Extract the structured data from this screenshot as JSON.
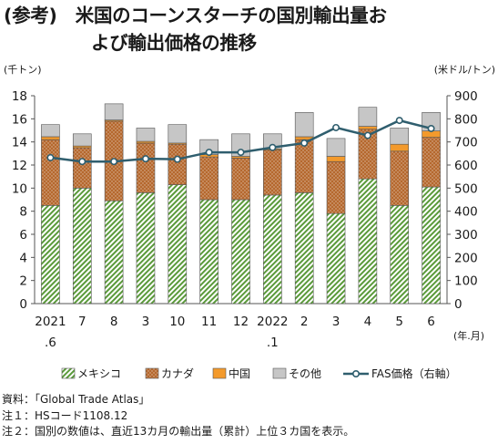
{
  "title": {
    "line1": "(参考)　米国のコーンスターチの国別輸出量お",
    "line2": "よび輸出価格の推移"
  },
  "notes": [
    "資料：「Global Trade Atlas」",
    "注１：HSコード1108.12",
    "注２：国別の数値は、直近13カ月の輸出量（累計）上位３カ国を表示。"
  ],
  "colors": {
    "mexico_fg": "#5a9a3a",
    "canada_fill": "#b5682e",
    "china_fill": "#f39a2c",
    "other_fill": "#c6c6c6",
    "fas_line": "#2f5e6e",
    "fas_marker_fill": "#ffffff"
  },
  "chart_data": {
    "type": "bar",
    "stacked": true,
    "title": "",
    "ylabel": "(千トン)",
    "y2label": "(米ドル/トン)",
    "xlabel": "(年.月)",
    "ylim": [
      0,
      18
    ],
    "yticks": [
      0,
      2,
      4,
      6,
      8,
      10,
      12,
      14,
      16,
      18
    ],
    "y2lim": [
      0,
      900
    ],
    "y2ticks": [
      0,
      100,
      200,
      300,
      400,
      500,
      600,
      700,
      800,
      900
    ],
    "grid": false,
    "legend_position": "bottom",
    "categories": [
      "2021.6",
      "7",
      "8",
      "3",
      "10",
      "11",
      "12",
      "2022.1",
      "2",
      "3",
      "4",
      "5",
      "6"
    ],
    "category_labels": [
      {
        "main": "2021",
        "sub": ".6"
      },
      {
        "main": "7",
        "sub": ""
      },
      {
        "main": "8",
        "sub": ""
      },
      {
        "main": "3",
        "sub": ""
      },
      {
        "main": "10",
        "sub": ""
      },
      {
        "main": "11",
        "sub": ""
      },
      {
        "main": "12",
        "sub": ""
      },
      {
        "main": "2022",
        "sub": ".1"
      },
      {
        "main": "2",
        "sub": ""
      },
      {
        "main": "3",
        "sub": ""
      },
      {
        "main": "4",
        "sub": ""
      },
      {
        "main": "5",
        "sub": ""
      },
      {
        "main": "6",
        "sub": ""
      }
    ],
    "series": [
      {
        "name": "メキシコ",
        "axis": "left",
        "kind": "bar",
        "values": [
          8.5,
          10.0,
          8.9,
          9.6,
          10.3,
          9.0,
          9.0,
          9.4,
          9.6,
          7.8,
          10.8,
          8.5,
          10.1
        ]
      },
      {
        "name": "カナダ",
        "axis": "left",
        "kind": "bar",
        "values": [
          5.7,
          3.5,
          6.9,
          4.3,
          3.5,
          3.7,
          3.6,
          3.9,
          4.6,
          4.5,
          4.3,
          4.7,
          4.3
        ]
      },
      {
        "name": "中国",
        "axis": "left",
        "kind": "bar",
        "values": [
          0.25,
          0.15,
          0.1,
          0.15,
          0.1,
          0.2,
          0.15,
          0.1,
          0.25,
          0.45,
          0.25,
          0.6,
          0.55
        ]
      },
      {
        "name": "その他",
        "axis": "left",
        "kind": "bar",
        "values": [
          1.05,
          1.05,
          1.4,
          1.15,
          1.6,
          1.3,
          1.95,
          1.3,
          2.1,
          1.55,
          1.65,
          1.4,
          1.6
        ]
      },
      {
        "name": "FAS価格（右軸）",
        "axis": "right",
        "kind": "line",
        "values": [
          632,
          615,
          615,
          627,
          625,
          655,
          655,
          676,
          695,
          762,
          728,
          793,
          758
        ]
      }
    ]
  }
}
